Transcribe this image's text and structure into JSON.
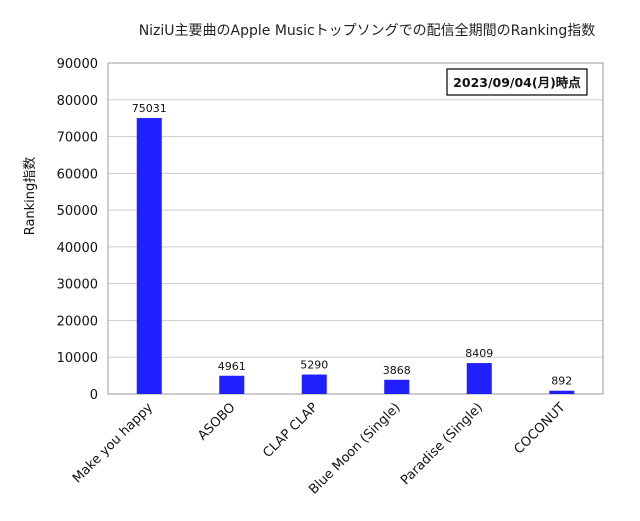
{
  "chart_data": {
    "type": "bar",
    "title": "NiziU主要曲のApple Musicトップソングでの配信全期間のRanking指数",
    "xlabel": "",
    "ylabel": "Ranking指数",
    "ylim": [
      0,
      90000
    ],
    "yticks": [
      0,
      10000,
      20000,
      30000,
      40000,
      50000,
      60000,
      70000,
      80000,
      90000
    ],
    "grid": true,
    "annotation": "2023/09/04(月)時点",
    "bar_color": "#1f1fff",
    "categories": [
      "Make you happy",
      "ASOBO",
      "CLAP CLAP",
      "Blue Moon (Single)",
      "Paradise (Single)",
      "COCONUT"
    ],
    "values": [
      75031,
      4961,
      5290,
      3868,
      8409,
      892
    ]
  }
}
